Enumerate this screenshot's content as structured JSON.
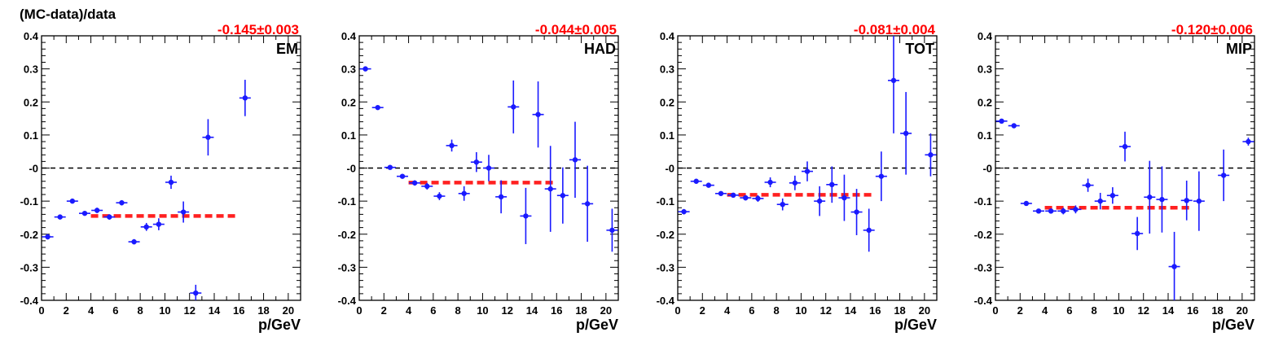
{
  "figure": {
    "ylabel": "(MC-data)/data"
  },
  "style": {
    "point_color": "#1a1aff",
    "fit_color": "#ff2020",
    "fit_label_color": "#ff0000",
    "zero_line_color": "#000000"
  },
  "chart_data": [
    {
      "type": "scatter",
      "title": "EM",
      "fit_label": "-0.145±0.003",
      "xlabel": "p/GeV",
      "ylabel": "(MC-data)/data",
      "xlim": [
        0,
        21
      ],
      "ylim": [
        -0.4,
        0.4
      ],
      "xticks": [
        "0",
        "2",
        "4",
        "6",
        "8",
        "10",
        "12",
        "14",
        "16",
        "18",
        "20"
      ],
      "yticks": [
        "0.4",
        "0.3",
        "0.2",
        "0.1",
        "-0",
        "-0.1",
        "-0.2",
        "-0.3",
        "-0.4"
      ],
      "fit": {
        "value": -0.145,
        "x_range": [
          4,
          16
        ]
      },
      "points": [
        {
          "x": 0.5,
          "y": -0.208,
          "err": 0.008
        },
        {
          "x": 1.5,
          "y": -0.148,
          "err": 0.006
        },
        {
          "x": 2.5,
          "y": -0.1,
          "err": 0.006
        },
        {
          "x": 3.5,
          "y": -0.137,
          "err": 0.006
        },
        {
          "x": 4.5,
          "y": -0.128,
          "err": 0.008
        },
        {
          "x": 5.5,
          "y": -0.148,
          "err": 0.008
        },
        {
          "x": 6.5,
          "y": -0.105,
          "err": 0.008
        },
        {
          "x": 7.5,
          "y": -0.223,
          "err": 0.008
        },
        {
          "x": 8.5,
          "y": -0.178,
          "err": 0.012
        },
        {
          "x": 9.5,
          "y": -0.17,
          "err": 0.018
        },
        {
          "x": 10.5,
          "y": -0.043,
          "err": 0.02
        },
        {
          "x": 11.5,
          "y": -0.133,
          "err": 0.032
        },
        {
          "x": 12.5,
          "y": -0.378,
          "err": 0.025
        },
        {
          "x": 13.5,
          "y": 0.093,
          "err": 0.055
        },
        {
          "x": 16.5,
          "y": 0.212,
          "err": 0.055
        }
      ]
    },
    {
      "type": "scatter",
      "title": "HAD",
      "fit_label": "-0.044±0.005",
      "xlabel": "p/GeV",
      "ylabel": "",
      "xlim": [
        0,
        21
      ],
      "ylim": [
        -0.4,
        0.4
      ],
      "xticks": [
        "0",
        "2",
        "4",
        "6",
        "8",
        "10",
        "12",
        "14",
        "16",
        "18",
        "20"
      ],
      "yticks": [
        "0.4",
        "0.3",
        "0.2",
        "0.1",
        "-0",
        "-0.1",
        "-0.2",
        "-0.3",
        "-0.4"
      ],
      "fit": {
        "value": -0.044,
        "x_range": [
          4,
          16
        ]
      },
      "points": [
        {
          "x": 0.5,
          "y": 0.3,
          "err": 0.005
        },
        {
          "x": 1.5,
          "y": 0.183,
          "err": 0.005
        },
        {
          "x": 2.5,
          "y": 0.002,
          "err": 0.005
        },
        {
          "x": 3.5,
          "y": -0.025,
          "err": 0.006
        },
        {
          "x": 4.5,
          "y": -0.045,
          "err": 0.008
        },
        {
          "x": 5.5,
          "y": -0.055,
          "err": 0.01
        },
        {
          "x": 6.5,
          "y": -0.085,
          "err": 0.012
        },
        {
          "x": 7.5,
          "y": 0.068,
          "err": 0.018
        },
        {
          "x": 8.5,
          "y": -0.077,
          "err": 0.022
        },
        {
          "x": 9.5,
          "y": 0.018,
          "err": 0.03
        },
        {
          "x": 10.5,
          "y": 0.0,
          "err": 0.04
        },
        {
          "x": 11.5,
          "y": -0.087,
          "err": 0.05
        },
        {
          "x": 12.5,
          "y": 0.185,
          "err": 0.08
        },
        {
          "x": 13.5,
          "y": -0.145,
          "err": 0.085
        },
        {
          "x": 14.5,
          "y": 0.162,
          "err": 0.1
        },
        {
          "x": 15.5,
          "y": -0.063,
          "err": 0.13
        },
        {
          "x": 16.5,
          "y": -0.083,
          "err": 0.085
        },
        {
          "x": 17.5,
          "y": 0.025,
          "err": 0.115
        },
        {
          "x": 18.5,
          "y": -0.108,
          "err": 0.115
        },
        {
          "x": 20.5,
          "y": -0.188,
          "err": 0.065
        }
      ]
    },
    {
      "type": "scatter",
      "title": "TOT",
      "fit_label": "-0.081±0.004",
      "xlabel": "p/GeV",
      "ylabel": "",
      "xlim": [
        0,
        21
      ],
      "ylim": [
        -0.4,
        0.4
      ],
      "xticks": [
        "0",
        "2",
        "4",
        "6",
        "8",
        "10",
        "12",
        "14",
        "16",
        "18",
        "20"
      ],
      "yticks": [
        "0.4",
        "0.3",
        "0.2",
        "0.1",
        "-0",
        "-0.1",
        "-0.2",
        "-0.3",
        "-0.4"
      ],
      "fit": {
        "value": -0.081,
        "x_range": [
          4,
          16
        ]
      },
      "points": [
        {
          "x": 0.5,
          "y": -0.132,
          "err": 0.008
        },
        {
          "x": 1.5,
          "y": -0.04,
          "err": 0.005
        },
        {
          "x": 2.5,
          "y": -0.052,
          "err": 0.005
        },
        {
          "x": 3.5,
          "y": -0.077,
          "err": 0.005
        },
        {
          "x": 4.5,
          "y": -0.082,
          "err": 0.006
        },
        {
          "x": 5.5,
          "y": -0.09,
          "err": 0.008
        },
        {
          "x": 6.5,
          "y": -0.092,
          "err": 0.01
        },
        {
          "x": 7.5,
          "y": -0.043,
          "err": 0.015
        },
        {
          "x": 8.5,
          "y": -0.11,
          "err": 0.018
        },
        {
          "x": 9.5,
          "y": -0.045,
          "err": 0.022
        },
        {
          "x": 10.5,
          "y": -0.01,
          "err": 0.03
        },
        {
          "x": 11.5,
          "y": -0.1,
          "err": 0.045
        },
        {
          "x": 12.5,
          "y": -0.05,
          "err": 0.055
        },
        {
          "x": 13.5,
          "y": -0.09,
          "err": 0.07
        },
        {
          "x": 14.5,
          "y": -0.133,
          "err": 0.07
        },
        {
          "x": 15.5,
          "y": -0.188,
          "err": 0.065
        },
        {
          "x": 16.5,
          "y": -0.025,
          "err": 0.075
        },
        {
          "x": 17.5,
          "y": 0.265,
          "err": 0.16
        },
        {
          "x": 18.5,
          "y": 0.105,
          "err": 0.125
        },
        {
          "x": 20.5,
          "y": 0.04,
          "err": 0.065
        }
      ]
    },
    {
      "type": "scatter",
      "title": "MIP",
      "fit_label": "-0.120±0.006",
      "xlabel": "p/GeV",
      "ylabel": "",
      "xlim": [
        0,
        21
      ],
      "ylim": [
        -0.4,
        0.4
      ],
      "xticks": [
        "0",
        "2",
        "4",
        "6",
        "8",
        "10",
        "12",
        "14",
        "16",
        "18",
        "20"
      ],
      "yticks": [
        "0.4",
        "0.3",
        "0.2",
        "0.1",
        "-0",
        "-0.1",
        "-0.2",
        "-0.3",
        "-0.4"
      ],
      "fit": {
        "value": -0.12,
        "x_range": [
          4,
          16
        ]
      },
      "points": [
        {
          "x": 0.5,
          "y": 0.142,
          "err": 0.005
        },
        {
          "x": 1.5,
          "y": 0.128,
          "err": 0.005
        },
        {
          "x": 2.5,
          "y": -0.107,
          "err": 0.005
        },
        {
          "x": 3.5,
          "y": -0.13,
          "err": 0.006
        },
        {
          "x": 4.5,
          "y": -0.13,
          "err": 0.008
        },
        {
          "x": 5.5,
          "y": -0.13,
          "err": 0.01
        },
        {
          "x": 6.5,
          "y": -0.125,
          "err": 0.012
        },
        {
          "x": 7.5,
          "y": -0.052,
          "err": 0.02
        },
        {
          "x": 8.5,
          "y": -0.1,
          "err": 0.025
        },
        {
          "x": 9.5,
          "y": -0.083,
          "err": 0.025
        },
        {
          "x": 10.5,
          "y": 0.065,
          "err": 0.045
        },
        {
          "x": 11.5,
          "y": -0.198,
          "err": 0.05
        },
        {
          "x": 12.5,
          "y": -0.088,
          "err": 0.11
        },
        {
          "x": 13.5,
          "y": -0.095,
          "err": 0.1
        },
        {
          "x": 14.5,
          "y": -0.298,
          "err": 0.105
        },
        {
          "x": 15.5,
          "y": -0.098,
          "err": 0.06
        },
        {
          "x": 16.5,
          "y": -0.1,
          "err": 0.09
        },
        {
          "x": 18.5,
          "y": -0.022,
          "err": 0.078
        },
        {
          "x": 20.5,
          "y": 0.08,
          "err": 0.012
        }
      ]
    }
  ]
}
